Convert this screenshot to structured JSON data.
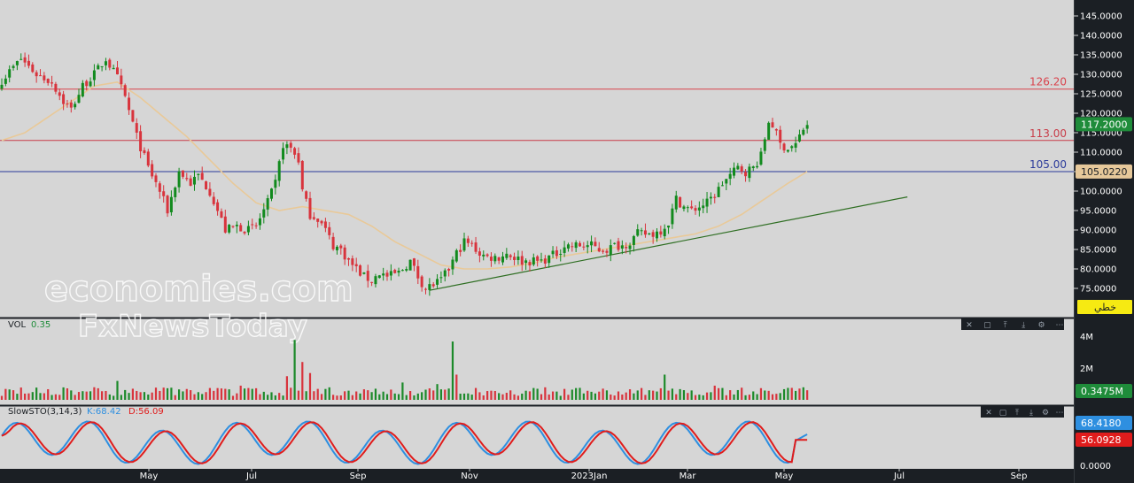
{
  "chart_data": {
    "type": "candlestick",
    "price_axis": {
      "ticks": [
        "145.0000",
        "140.0000",
        "135.0000",
        "130.0000",
        "125.0000",
        "120.0000",
        "115.0000",
        "110.0000",
        "105.0000",
        "100.0000",
        "95.0000",
        "90.0000",
        "85.0000",
        "80.0000",
        "75.0000"
      ],
      "ylim": [
        71,
        147
      ]
    },
    "x_axis": {
      "ticks": [
        "May",
        "Jul",
        "Sep",
        "Nov",
        "2023Jan",
        "Mar",
        "May",
        "Jul",
        "Sep"
      ]
    },
    "horizontal_levels": [
      {
        "label": "126.20",
        "value": 126.2,
        "color": "#d9434c"
      },
      {
        "label": "113.00",
        "value": 113.0,
        "color": "#c83c48"
      },
      {
        "label": "105.00",
        "value": 105.0,
        "color": "#2a3a9a"
      }
    ],
    "last_price_tag": {
      "value": "117.2000",
      "color": "#1f8c3a"
    },
    "ma_tag": {
      "value": "105.0220",
      "color": "#e6c89a"
    },
    "drawing_tool_tag": "خطي",
    "trendline": {
      "from": {
        "index": 111,
        "price": 74.5
      },
      "to": {
        "index": 235,
        "price": 98.5
      },
      "color": "#2e6e22"
    },
    "price_anchors": [
      [
        0,
        128.5
      ],
      [
        5,
        134
      ],
      [
        9,
        130
      ],
      [
        13,
        128
      ],
      [
        16,
        123
      ],
      [
        18,
        121
      ],
      [
        21,
        127
      ],
      [
        24,
        130
      ],
      [
        27,
        134
      ],
      [
        30,
        129
      ],
      [
        32,
        124
      ],
      [
        35,
        114
      ],
      [
        38,
        106
      ],
      [
        41,
        100
      ],
      [
        43,
        95
      ],
      [
        46,
        105
      ],
      [
        49,
        102
      ],
      [
        51,
        104
      ],
      [
        54,
        100
      ],
      [
        56,
        95
      ],
      [
        58,
        90
      ],
      [
        61,
        91
      ],
      [
        64,
        90
      ],
      [
        66,
        91
      ],
      [
        69,
        97
      ],
      [
        71,
        102
      ],
      [
        73,
        112
      ],
      [
        75,
        111
      ],
      [
        77,
        108
      ],
      [
        78,
        100
      ],
      [
        80,
        94
      ],
      [
        82,
        93
      ],
      [
        84,
        90
      ],
      [
        86,
        86
      ],
      [
        88,
        85
      ],
      [
        90,
        82
      ],
      [
        92,
        80
      ],
      [
        94,
        78
      ],
      [
        96,
        77
      ],
      [
        98,
        79
      ],
      [
        100,
        78
      ],
      [
        103,
        79
      ],
      [
        106,
        82
      ],
      [
        108,
        78
      ],
      [
        110,
        75
      ],
      [
        112,
        76
      ],
      [
        114,
        77
      ],
      [
        116,
        80
      ],
      [
        118,
        84
      ],
      [
        120,
        87
      ],
      [
        122,
        86
      ],
      [
        124,
        84
      ],
      [
        126,
        83
      ],
      [
        129,
        83
      ],
      [
        131,
        84
      ],
      [
        133,
        83
      ],
      [
        135,
        82
      ],
      [
        137,
        82
      ],
      [
        140,
        82
      ],
      [
        142,
        83
      ],
      [
        144,
        84
      ],
      [
        146,
        86
      ],
      [
        148,
        86
      ],
      [
        150,
        86
      ],
      [
        153,
        86
      ],
      [
        155,
        85
      ],
      [
        157,
        85
      ],
      [
        159,
        86
      ],
      [
        161,
        86
      ],
      [
        163,
        87
      ],
      [
        165,
        89
      ],
      [
        167,
        89
      ],
      [
        169,
        89
      ],
      [
        171,
        90
      ],
      [
        173,
        92
      ],
      [
        175,
        98
      ],
      [
        177,
        96
      ],
      [
        179,
        95
      ],
      [
        181,
        96
      ],
      [
        183,
        97
      ],
      [
        185,
        99
      ],
      [
        187,
        102
      ],
      [
        189,
        104
      ],
      [
        191,
        106
      ],
      [
        193,
        105
      ],
      [
        195,
        106
      ],
      [
        197,
        109
      ],
      [
        199,
        118
      ],
      [
        200,
        117
      ],
      [
        202,
        112
      ],
      [
        204,
        111
      ],
      [
        206,
        112
      ],
      [
        208,
        116
      ],
      [
        209,
        117.2
      ]
    ],
    "ma_anchors": [
      [
        0,
        113
      ],
      [
        6,
        115
      ],
      [
        12,
        119
      ],
      [
        18,
        123
      ],
      [
        24,
        127
      ],
      [
        30,
        128
      ],
      [
        36,
        124
      ],
      [
        42,
        119
      ],
      [
        48,
        114
      ],
      [
        54,
        108
      ],
      [
        60,
        102
      ],
      [
        66,
        97
      ],
      [
        72,
        95
      ],
      [
        78,
        96
      ],
      [
        84,
        95
      ],
      [
        90,
        94
      ],
      [
        96,
        91
      ],
      [
        102,
        87
      ],
      [
        108,
        84
      ],
      [
        114,
        81
      ],
      [
        120,
        80
      ],
      [
        126,
        80
      ],
      [
        132,
        80.5
      ],
      [
        138,
        81.5
      ],
      [
        144,
        83
      ],
      [
        150,
        84
      ],
      [
        156,
        85
      ],
      [
        162,
        86
      ],
      [
        168,
        87
      ],
      [
        174,
        88
      ],
      [
        180,
        89
      ],
      [
        186,
        91
      ],
      [
        192,
        94
      ],
      [
        198,
        98
      ],
      [
        204,
        102
      ],
      [
        209,
        105
      ]
    ],
    "volume": {
      "label": "VOL",
      "value": "0.35",
      "ticks": [
        "4M",
        "2M"
      ],
      "last_tag": "0.3475M",
      "max": 4.6,
      "spikes": [
        [
          30,
          1.2
        ],
        [
          62,
          0.9
        ],
        [
          74,
          1.5
        ],
        [
          76,
          3.8
        ],
        [
          78,
          2.4
        ],
        [
          80,
          1.7
        ],
        [
          104,
          1.1
        ],
        [
          113,
          1.0
        ],
        [
          117,
          3.7
        ],
        [
          118,
          1.6
        ],
        [
          172,
          1.6
        ],
        [
          185,
          0.9
        ]
      ]
    },
    "stochastic": {
      "label": "SlowSTO(3,14,3)",
      "k_label": "K:68.42",
      "d_label": "D:56.09",
      "k_tag": "68.4180",
      "d_tag": "56.0928",
      "zero_tick": "0.0000",
      "k_color": "#2e8fe0",
      "d_color": "#e01c1c"
    }
  },
  "watermark": {
    "line1": "economies.com",
    "line2": "FxNewsToday"
  },
  "panel_controls": [
    "close-icon",
    "maximize-icon",
    "move-up-icon",
    "move-down-icon",
    "settings-icon",
    "more-icon"
  ]
}
